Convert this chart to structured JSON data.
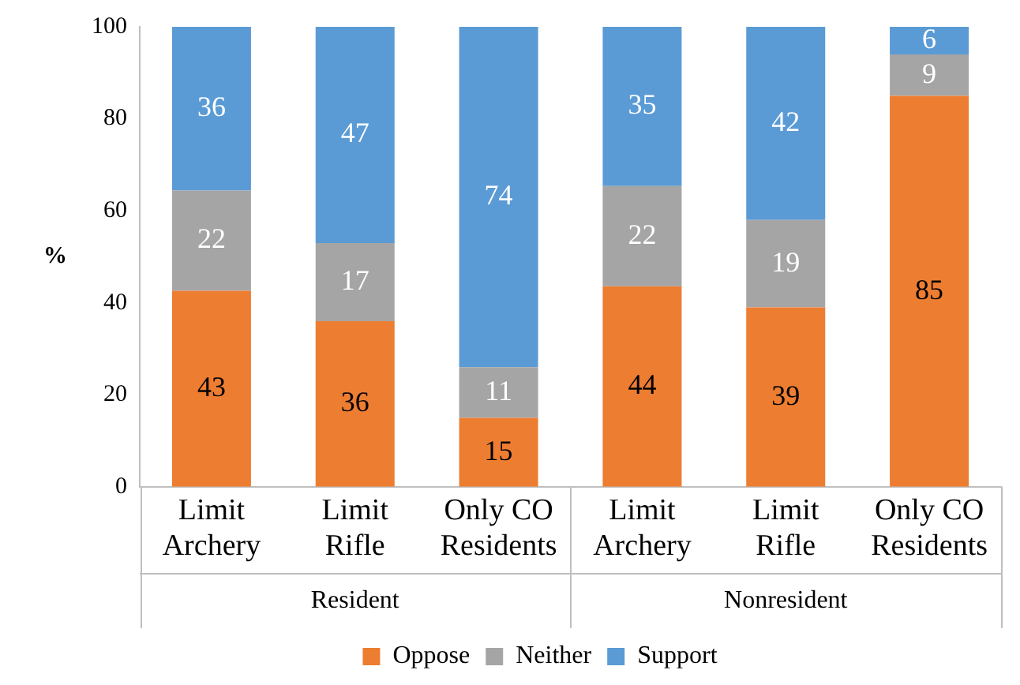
{
  "chart_data": {
    "type": "bar",
    "stacked": true,
    "ylabel": "%",
    "categories": [
      "Limit Archery",
      "Limit Rifle",
      "Only CO Residents",
      "Limit Archery",
      "Limit Rifle",
      "Only CO Residents"
    ],
    "series": [
      {
        "name": "Oppose",
        "color": "#ed7d31",
        "values": [
          42.6,
          36,
          15,
          43.6,
          39,
          85
        ],
        "value_labels": [
          "43",
          "36",
          "15",
          "44",
          "39",
          "85"
        ]
      },
      {
        "name": "Neither",
        "color": "#a5a5a5",
        "values": [
          21.8,
          17,
          11,
          21.8,
          19,
          9
        ],
        "value_labels": [
          "22",
          "17",
          "11",
          "22",
          "19",
          "9"
        ]
      },
      {
        "name": "Support",
        "color": "#5b9bd5",
        "values": [
          35.6,
          47,
          74,
          34.6,
          42,
          6
        ],
        "value_labels": [
          "36",
          "47",
          "74",
          "35",
          "42",
          "6"
        ]
      }
    ],
    "ylim": [
      0,
      100
    ],
    "yticks": [
      0,
      20,
      40,
      60,
      80,
      100
    ],
    "grid": false,
    "legend": "bottom",
    "annotations": [
      "Resident",
      "Nonresident"
    ]
  }
}
